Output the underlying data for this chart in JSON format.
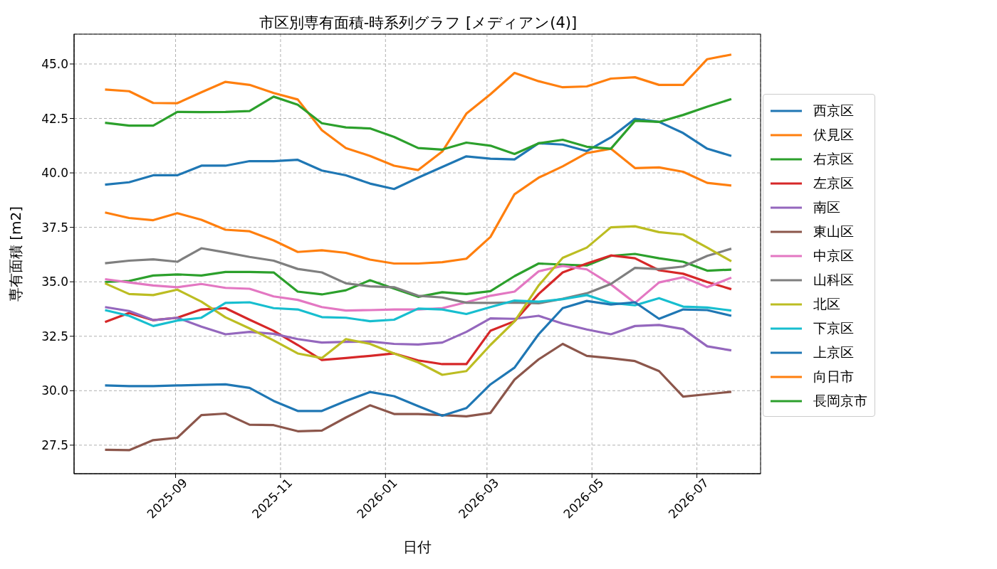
{
  "chart_data": {
    "type": "line",
    "title": "市区別専有面積-時系列グラフ [メディアン(4)]",
    "xlabel": "日付",
    "ylabel": "専有面積 [m2]",
    "x": [
      "2025-07-22",
      "2025-08-05",
      "2025-08-19",
      "2025-09-02",
      "2025-09-16",
      "2025-09-30",
      "2025-10-14",
      "2025-10-28",
      "2025-11-11",
      "2025-11-25",
      "2025-12-09",
      "2025-12-23",
      "2026-01-06",
      "2026-01-20",
      "2026-02-03",
      "2026-02-17",
      "2026-03-03",
      "2026-03-17",
      "2026-03-31",
      "2026-04-14",
      "2026-04-28",
      "2026-05-12",
      "2026-05-26",
      "2026-06-09",
      "2026-06-23",
      "2026-07-07",
      "2026-07-21"
    ],
    "series": [
      {
        "name": "西京区",
        "color": "#1f77b4",
        "values": [
          39.46,
          39.57,
          39.89,
          39.89,
          40.33,
          40.33,
          40.54,
          40.54,
          40.6,
          40.11,
          39.89,
          39.51,
          39.26,
          39.78,
          40.27,
          40.76,
          40.65,
          40.62,
          41.36,
          41.3,
          41.0,
          41.63,
          42.48,
          42.34,
          41.83,
          41.11,
          40.78
        ]
      },
      {
        "name": "伏見区",
        "color": "#ff7f0e",
        "values": [
          38.18,
          37.93,
          37.83,
          38.15,
          37.85,
          37.39,
          37.32,
          36.9,
          36.37,
          36.45,
          36.33,
          36.02,
          35.84,
          35.84,
          35.9,
          36.06,
          37.06,
          39.02,
          39.78,
          40.3,
          40.91,
          41.11,
          40.22,
          40.25,
          40.05,
          39.54,
          39.42
        ]
      },
      {
        "name": "右京区",
        "color": "#2ca02c",
        "values": [
          34.99,
          35.04,
          35.29,
          35.34,
          35.29,
          35.45,
          35.45,
          35.43,
          34.55,
          34.42,
          34.61,
          35.07,
          34.69,
          34.31,
          34.52,
          34.44,
          34.57,
          35.26,
          35.84,
          35.79,
          35.75,
          36.19,
          36.28,
          36.08,
          35.92,
          35.51,
          35.56
        ]
      },
      {
        "name": "左京区",
        "color": "#d62728",
        "values": [
          33.15,
          33.57,
          33.24,
          33.35,
          33.73,
          33.79,
          33.26,
          32.75,
          32.1,
          31.41,
          31.5,
          31.6,
          31.71,
          31.39,
          31.22,
          31.22,
          32.75,
          33.19,
          34.44,
          35.43,
          35.84,
          36.21,
          36.08,
          35.53,
          35.37,
          34.99,
          34.66
        ]
      },
      {
        "name": "南区",
        "color": "#9467bd",
        "values": [
          33.84,
          33.66,
          33.24,
          33.35,
          32.94,
          32.59,
          32.7,
          32.61,
          32.37,
          32.21,
          32.24,
          32.26,
          32.15,
          32.12,
          32.21,
          32.7,
          33.32,
          33.3,
          33.44,
          33.08,
          32.81,
          32.59,
          32.97,
          33.02,
          32.83,
          32.04,
          31.85
        ]
      },
      {
        "name": "東山区",
        "color": "#8c564b",
        "values": [
          27.29,
          27.27,
          27.73,
          27.84,
          28.88,
          28.95,
          28.44,
          28.42,
          28.14,
          28.17,
          28.77,
          29.33,
          28.93,
          28.93,
          28.88,
          28.82,
          28.98,
          30.51,
          31.44,
          32.15,
          31.6,
          31.49,
          31.36,
          30.9,
          29.73,
          29.84,
          29.95
        ]
      },
      {
        "name": "中京区",
        "color": "#e377c2",
        "values": [
          35.12,
          34.97,
          34.83,
          34.75,
          34.9,
          34.72,
          34.68,
          34.33,
          34.17,
          33.84,
          33.68,
          33.7,
          33.73,
          33.73,
          33.79,
          34.06,
          34.36,
          34.55,
          35.48,
          35.73,
          35.57,
          34.88,
          34.03,
          34.97,
          35.21,
          34.75,
          35.19
        ]
      },
      {
        "name": "山科区",
        "color": "#7f7f7f",
        "values": [
          35.85,
          35.97,
          36.03,
          35.92,
          36.54,
          36.35,
          36.14,
          35.97,
          35.59,
          35.43,
          34.93,
          34.79,
          34.75,
          34.36,
          34.28,
          34.04,
          34.03,
          34.05,
          34.01,
          34.22,
          34.47,
          34.9,
          35.64,
          35.58,
          35.7,
          36.19,
          36.52
        ]
      },
      {
        "name": "北区",
        "color": "#bcbd22",
        "values": [
          34.93,
          34.44,
          34.39,
          34.64,
          34.09,
          33.37,
          32.86,
          32.31,
          31.71,
          31.5,
          32.37,
          32.15,
          31.71,
          31.3,
          30.73,
          30.9,
          32.1,
          33.18,
          34.83,
          36.1,
          36.57,
          37.5,
          37.55,
          37.28,
          37.17,
          36.57,
          35.94
        ]
      },
      {
        "name": "下京区",
        "color": "#17becf",
        "values": [
          33.7,
          33.44,
          32.97,
          33.22,
          33.35,
          34.03,
          34.06,
          33.79,
          33.73,
          33.38,
          33.35,
          33.19,
          33.26,
          33.77,
          33.73,
          33.52,
          33.84,
          34.14,
          34.09,
          34.2,
          34.39,
          34.03,
          33.92,
          34.25,
          33.86,
          33.82,
          33.68
        ]
      },
      {
        "name": "上京区",
        "color": "#1f77b4",
        "values": [
          30.24,
          30.21,
          30.21,
          30.24,
          30.27,
          30.29,
          30.13,
          29.53,
          29.07,
          29.07,
          29.53,
          29.94,
          29.75,
          29.29,
          28.85,
          29.2,
          30.29,
          31.06,
          32.59,
          33.79,
          34.12,
          33.96,
          34.06,
          33.3,
          33.73,
          33.7,
          33.44
        ]
      },
      {
        "name": "向日市",
        "color": "#ff7f0e",
        "values": [
          43.83,
          43.75,
          43.21,
          43.2,
          43.7,
          44.18,
          44.04,
          43.67,
          43.37,
          41.96,
          41.14,
          40.78,
          40.33,
          40.13,
          40.98,
          42.72,
          43.61,
          44.59,
          44.21,
          43.93,
          43.97,
          44.33,
          44.39,
          44.04,
          44.04,
          45.22,
          45.43
        ]
      },
      {
        "name": "長岡京市",
        "color": "#2ca02c",
        "values": [
          42.3,
          42.17,
          42.17,
          42.8,
          42.79,
          42.8,
          42.84,
          43.5,
          43.13,
          42.28,
          42.09,
          42.04,
          41.65,
          41.14,
          41.07,
          41.39,
          41.25,
          40.87,
          41.36,
          41.52,
          41.2,
          41.11,
          42.39,
          42.34,
          42.66,
          43.04,
          43.39
        ]
      }
    ],
    "xlim": [
      "2025-07-04",
      "2026-08-07"
    ],
    "xticks": [
      {
        "value": "2025-09-01",
        "label": "2025-09"
      },
      {
        "value": "2025-11-01",
        "label": "2025-11"
      },
      {
        "value": "2026-01-01",
        "label": "2026-01"
      },
      {
        "value": "2026-03-01",
        "label": "2026-03"
      },
      {
        "value": "2026-05-01",
        "label": "2026-05"
      },
      {
        "value": "2026-07-01",
        "label": "2026-07"
      }
    ],
    "ylim": [
      26.19,
      46.37
    ],
    "yticks": [
      {
        "value": 27.5,
        "label": "27.5"
      },
      {
        "value": 30,
        "label": "30.0"
      },
      {
        "value": 32.5,
        "label": "32.5"
      },
      {
        "value": 35,
        "label": "35.0"
      },
      {
        "value": 37.5,
        "label": "37.5"
      },
      {
        "value": 40,
        "label": "40.0"
      },
      {
        "value": 42.5,
        "label": "42.5"
      },
      {
        "value": 45,
        "label": "45.0"
      }
    ],
    "grid": true,
    "legend": "right"
  }
}
